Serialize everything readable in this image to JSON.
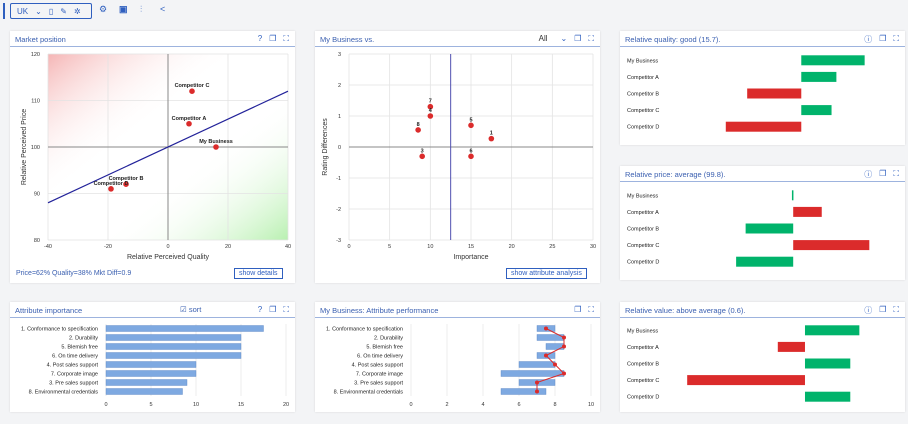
{
  "toolbar": {
    "country": "UK",
    "icons": [
      "chevron-down-icon",
      "document-icon",
      "pencil-icon",
      "network-icon",
      "gear-icon",
      "excel-icon",
      "sliders-icon",
      "share-icon"
    ]
  },
  "colors": {
    "accent": "#2f5fbf",
    "green": "#00b36b",
    "red": "#db2b2b",
    "bar_blue": "#7ea9e1",
    "line_blue": "#23239a"
  },
  "panels": {
    "market_position": {
      "title": "Market position",
      "footer": "Price=62%   Quality=38%   Mkt Diff=0.9",
      "button": "show details"
    },
    "my_business_vs": {
      "title": "My Business vs.",
      "filter_value": "All",
      "button": "show attribute analysis"
    },
    "relative_quality": {
      "title": "Relative quality: good (15.7)."
    },
    "relative_price": {
      "title": "Relative price: average (99.8)."
    },
    "attribute_importance": {
      "title": "Attribute importance",
      "sort_label": "sort",
      "sort_checked": true
    },
    "attribute_performance": {
      "title": "My Business: Attribute performance"
    },
    "relative_value": {
      "title": "Relative value: above average (0.6)."
    }
  },
  "chart_data": [
    {
      "id": "market_position",
      "type": "scatter",
      "xlabel": "Relative Perceived Quality",
      "ylabel": "Relative Perceived Price",
      "xlim": [
        -40,
        40
      ],
      "ylim": [
        80,
        120
      ],
      "xticks": [
        "-40",
        "-20",
        "0",
        "20",
        "40"
      ],
      "yticks": [
        "80",
        "90",
        "100",
        "110",
        "120"
      ],
      "points": [
        {
          "label": "Competitor C",
          "x": 8,
          "y": 112
        },
        {
          "label": "Competitor A",
          "x": 7,
          "y": 105
        },
        {
          "label": "My Business",
          "x": 16,
          "y": 100
        },
        {
          "label": "Competitor B",
          "x": -14,
          "y": 92
        },
        {
          "label": "Competitor D",
          "x": -19,
          "y": 91
        }
      ],
      "value_line": {
        "x1": -40,
        "y1": 88,
        "x2": 40,
        "y2": 112
      }
    },
    {
      "id": "my_business_vs",
      "type": "scatter",
      "xlabel": "Importance",
      "ylabel": "Rating Differences",
      "xlim": [
        0,
        30
      ],
      "ylim": [
        -3,
        3
      ],
      "xticks": [
        "0",
        "5",
        "10",
        "15",
        "20",
        "25",
        "30"
      ],
      "yticks": [
        "-3",
        "-2",
        "-1",
        "0",
        "1",
        "2",
        "3"
      ],
      "vline": 12.5,
      "points": [
        {
          "label": "7",
          "x": 10,
          "y": 1.3
        },
        {
          "label": "4",
          "x": 10,
          "y": 1.0
        },
        {
          "label": "8",
          "x": 8.5,
          "y": 0.55
        },
        {
          "label": "5",
          "x": 15,
          "y": 0.7
        },
        {
          "label": "1",
          "x": 17.5,
          "y": 0.27
        },
        {
          "label": "3",
          "x": 9,
          "y": -0.3
        },
        {
          "label": "6",
          "x": 15,
          "y": -0.3
        }
      ]
    },
    {
      "id": "relative_quality",
      "type": "bar",
      "categories": [
        "My Business",
        "Competitor A",
        "Competitor B",
        "Competitor C",
        "Competitor D"
      ],
      "values": [
        15.7,
        8.7,
        -13.4,
        7.5,
        -18.7
      ],
      "xlim": [
        -35,
        20
      ]
    },
    {
      "id": "relative_price",
      "type": "bar",
      "categories": [
        "My Business",
        "Competitor A",
        "Competitor B",
        "Competitor C",
        "Competitor D"
      ],
      "values": [
        -0.2,
        4.5,
        -7.5,
        12,
        -9
      ],
      "xlim": [
        -21,
        14
      ]
    },
    {
      "id": "attribute_importance",
      "type": "bar",
      "categories": [
        "1. Conformance to specification",
        "2. Durability",
        "5. Blemish free",
        "6. On time delivery",
        "4. Post sales support",
        "7. Corporate image",
        "3. Pre sales support",
        "8. Environmental credentials"
      ],
      "values": [
        17.5,
        15,
        15,
        15,
        10,
        10,
        9,
        8.5
      ],
      "xlim": [
        0,
        20
      ],
      "xticks": [
        "0",
        "5",
        "10",
        "15",
        "20"
      ]
    },
    {
      "id": "attribute_performance",
      "type": "bar",
      "categories": [
        "1. Conformance to specification",
        "2. Durability",
        "5. Blemish free",
        "6. On time delivery",
        "4. Post sales support",
        "7. Corporate image",
        "3. Pre sales support",
        "8. Environmental credentials"
      ],
      "ranges": [
        [
          7,
          8
        ],
        [
          7,
          8.5
        ],
        [
          7.5,
          8.5
        ],
        [
          7,
          8
        ],
        [
          6,
          8
        ],
        [
          5,
          8.5
        ],
        [
          6,
          8
        ],
        [
          5,
          7.5
        ]
      ],
      "my_business": [
        7.5,
        8.5,
        8.5,
        7.5,
        8,
        8.5,
        7,
        7
      ],
      "xlim": [
        0,
        10
      ],
      "xticks": [
        "0",
        "2",
        "4",
        "6",
        "8",
        "10"
      ]
    },
    {
      "id": "relative_value",
      "type": "bar",
      "categories": [
        "My Business",
        "Competitor A",
        "Competitor B",
        "Competitor C",
        "Competitor D"
      ],
      "values": [
        0.6,
        -0.3,
        0.5,
        -1.3,
        0.5
      ],
      "xlim": [
        -1.6,
        0.85
      ]
    }
  ]
}
